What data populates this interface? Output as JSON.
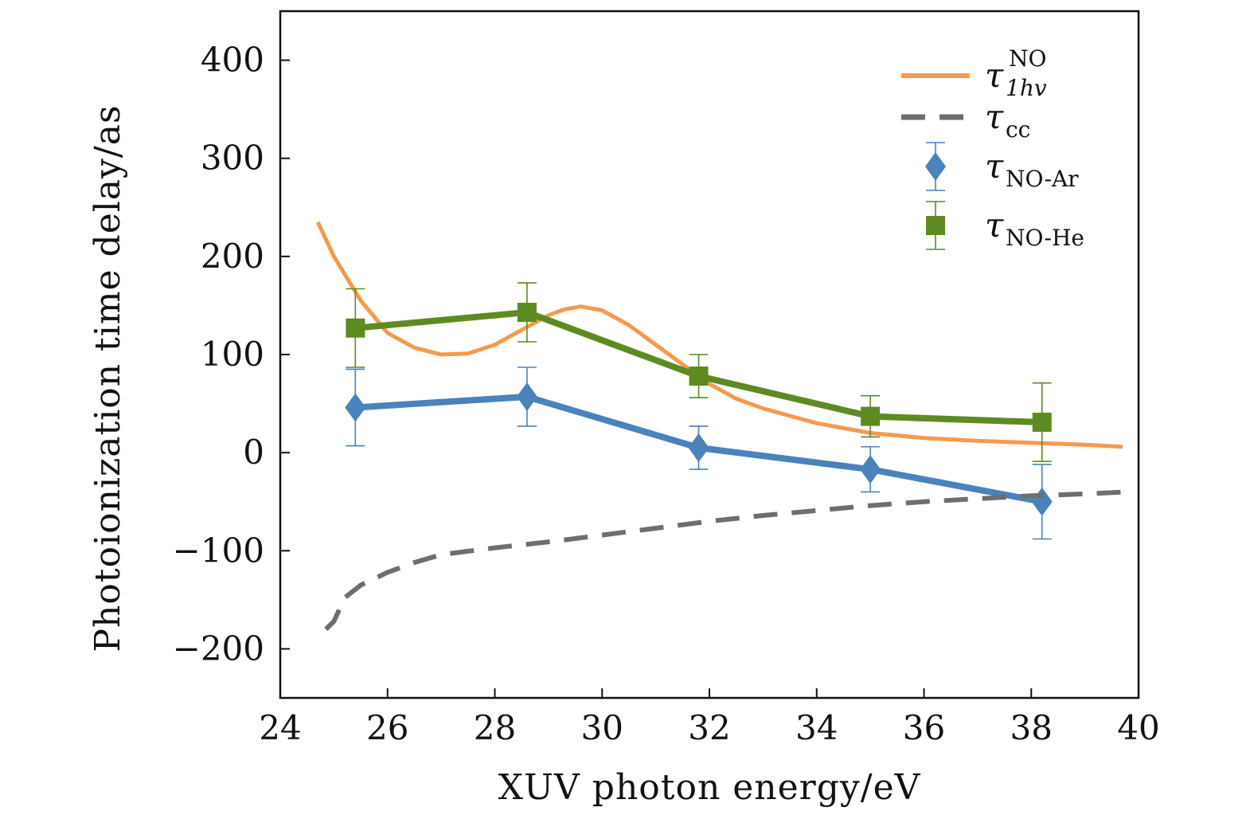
{
  "chart_data": {
    "type": "line",
    "title": "",
    "xlabel": "XUV photon energy/eV",
    "ylabel": "Photoionization time delay/as",
    "xlim": [
      24,
      40
    ],
    "ylim": [
      -250,
      450
    ],
    "xticks": [
      24,
      26,
      28,
      30,
      32,
      34,
      36,
      38,
      40
    ],
    "yticks": [
      -200,
      -100,
      0,
      100,
      200,
      300,
      400
    ],
    "xtick_labels": [
      "24",
      "26",
      "28",
      "30",
      "32",
      "34",
      "36",
      "38",
      "40"
    ],
    "ytick_labels": [
      "−200",
      "−100",
      "0",
      "100",
      "200",
      "300",
      "400"
    ],
    "legend_position": "top-right",
    "series": [
      {
        "key": "tau_1hv",
        "tau": "τ",
        "sub": "1hv",
        "sup": "NO",
        "style": "solid",
        "color": "#f59a4e",
        "x": [
          24.7,
          25.0,
          25.5,
          26.0,
          26.5,
          27.0,
          27.5,
          28.0,
          28.5,
          29.0,
          29.3,
          29.6,
          30.0,
          30.5,
          31.0,
          31.5,
          32.0,
          32.5,
          33.0,
          34.0,
          35.0,
          36.0,
          37.0,
          38.0,
          39.0,
          39.7
        ],
        "y": [
          235,
          200,
          155,
          122,
          107,
          100,
          101,
          110,
          125,
          140,
          146,
          149,
          145,
          130,
          110,
          90,
          70,
          55,
          45,
          30,
          20,
          15,
          12,
          10,
          8,
          6
        ]
      },
      {
        "key": "tau_cc",
        "tau": "τ",
        "sub": "cc",
        "sup": "",
        "style": "dashed",
        "color": "#6e6e6e",
        "x": [
          24.85,
          25.0,
          25.2,
          25.5,
          26.0,
          26.5,
          27.0,
          28.0,
          29.0,
          30.0,
          31.0,
          32.0,
          33.0,
          34.0,
          35.0,
          36.0,
          37.0,
          38.0,
          39.0,
          39.8
        ],
        "y": [
          -180,
          -172,
          -148,
          -135,
          -122,
          -112,
          -104,
          -97,
          -91,
          -84,
          -77,
          -70,
          -64,
          -59,
          -54,
          -50,
          -47,
          -44,
          -42,
          -40
        ]
      },
      {
        "key": "tau_no_ar",
        "tau": "τ",
        "sub": "NO-Ar",
        "sup": "",
        "style": "markers",
        "marker": "diamond",
        "color": "#4a82bc",
        "x": [
          25.4,
          28.6,
          31.8,
          35.0,
          38.2
        ],
        "y": [
          46,
          57,
          5,
          -17,
          -50
        ],
        "err": [
          39,
          30,
          22,
          23,
          38
        ]
      },
      {
        "key": "tau_no_he",
        "tau": "τ",
        "sub": "NO-He",
        "sup": "",
        "style": "markers",
        "marker": "square",
        "color": "#5e8a22",
        "x": [
          25.4,
          28.6,
          31.8,
          35.0,
          38.2
        ],
        "y": [
          127,
          143,
          78,
          37,
          31
        ],
        "err": [
          40,
          30,
          22,
          21,
          40
        ]
      }
    ]
  }
}
